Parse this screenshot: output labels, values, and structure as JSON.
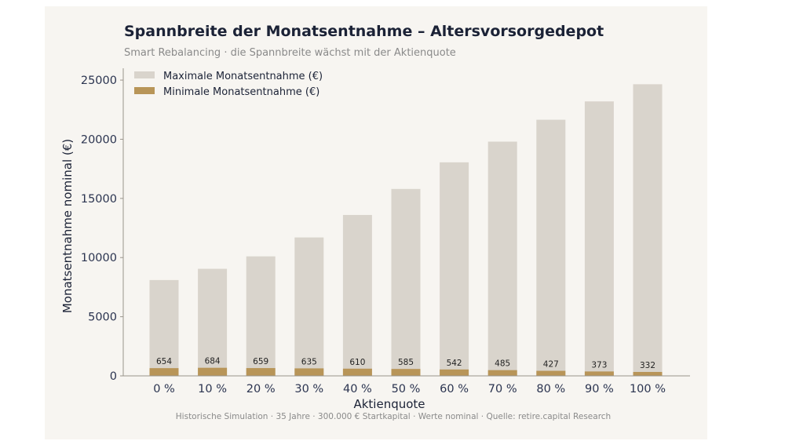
{
  "chart_data": {
    "type": "bar",
    "title": "Spannbreite der Monatsentnahme – Altersvorsorgedepot",
    "subtitle": "Smart Rebalancing · die Spannbreite wächst mit der Aktienquote",
    "xlabel": "Aktienquote",
    "ylabel": "Monatsentnahme nominal (€)",
    "footer": "Historische Simulation · 35 Jahre · 300.000 € Startkapital · Werte nominal · Quelle: retire.capital Research",
    "categories": [
      "0 %",
      "10 %",
      "20 %",
      "30 %",
      "40 %",
      "50 %",
      "60 %",
      "70 %",
      "80 %",
      "90 %",
      "100 %"
    ],
    "ylim": [
      0,
      26000
    ],
    "yticks": [
      0,
      5000,
      10000,
      15000,
      20000,
      25000
    ],
    "grid": false,
    "legend_position": "top-left",
    "series": [
      {
        "name": "Maximale Monatsentnahme (€)",
        "color": "#d9d4cc",
        "values": [
          8100,
          9050,
          10100,
          11700,
          13600,
          15800,
          18050,
          19800,
          21650,
          23200,
          24650
        ]
      },
      {
        "name": "Minimale Monatsentnahme (€)",
        "color": "#b89558",
        "values": [
          654,
          684,
          659,
          635,
          610,
          585,
          542,
          485,
          427,
          373,
          332
        ],
        "data_labels": [
          "654",
          "684",
          "659",
          "635",
          "610",
          "585",
          "542",
          "485",
          "427",
          "373",
          "332"
        ]
      }
    ]
  }
}
